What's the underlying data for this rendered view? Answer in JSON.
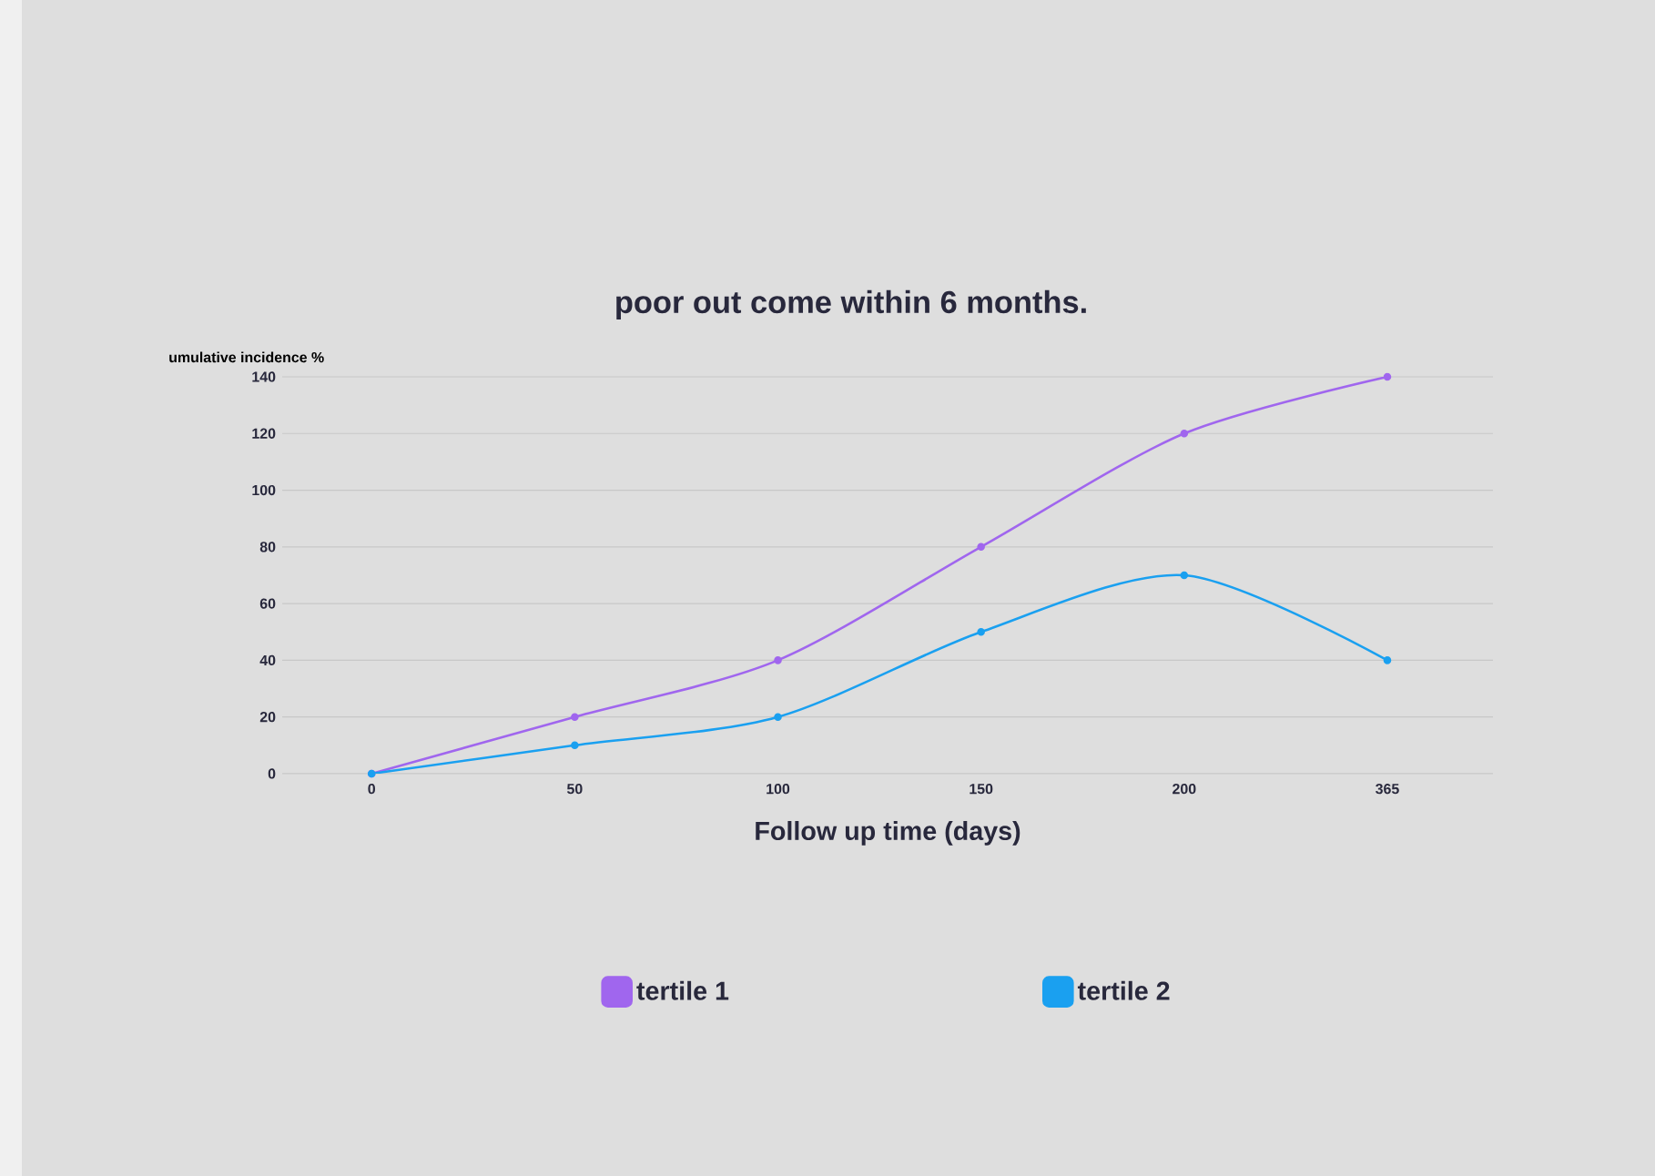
{
  "chart_data": {
    "type": "line",
    "title": "poor out come within 6 months.",
    "xlabel": "Follow up time (days)",
    "ylabel": "umulative incidence %",
    "categories": [
      "0",
      "50",
      "100",
      "150",
      "200",
      "365"
    ],
    "series": [
      {
        "name": "tertile 1",
        "color": "#a066ee",
        "values": [
          0,
          20,
          40,
          80,
          120,
          140
        ]
      },
      {
        "name": "tertile 2",
        "color": "#1aa0f0",
        "values": [
          0,
          10,
          20,
          50,
          70,
          40
        ]
      }
    ],
    "ylim": [
      0,
      140
    ],
    "yticks": [
      0,
      20,
      40,
      60,
      80,
      100,
      120,
      140
    ],
    "grid": "y",
    "legend": "bottom",
    "marker": "circle",
    "line_style": "solid"
  }
}
